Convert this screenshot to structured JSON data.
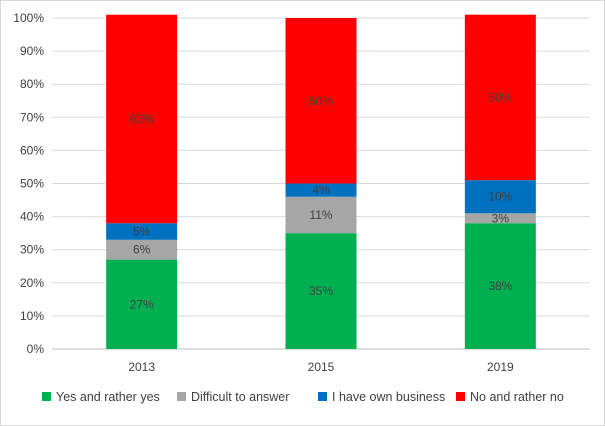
{
  "chart_data": {
    "type": "bar",
    "stacked": true,
    "categories": [
      "2013",
      "2015",
      "2019"
    ],
    "series": [
      {
        "name": "Yes and rather yes",
        "color": "#00b050",
        "values": [
          27,
          35,
          38
        ],
        "labels": [
          "27%",
          "35%",
          "38%"
        ]
      },
      {
        "name": "Difficult to answer",
        "color": "#a6a6a6",
        "values": [
          6,
          11,
          3
        ],
        "labels": [
          "6%",
          "11%",
          "3%"
        ]
      },
      {
        "name": "I have own business",
        "color": "#0070c0",
        "values": [
          5,
          4,
          10
        ],
        "labels": [
          "5%",
          "4%",
          "10%"
        ]
      },
      {
        "name": "No and rather no",
        "color": "#ff0000",
        "values": [
          63,
          50,
          50
        ],
        "labels": [
          "63%",
          "50%",
          "50%"
        ]
      }
    ],
    "ylim": [
      0,
      100
    ],
    "yticks": [
      "0%",
      "10%",
      "20%",
      "30%",
      "40%",
      "50%",
      "60%",
      "70%",
      "80%",
      "90%",
      "100%"
    ],
    "grid": true,
    "legend_position": "bottom"
  }
}
